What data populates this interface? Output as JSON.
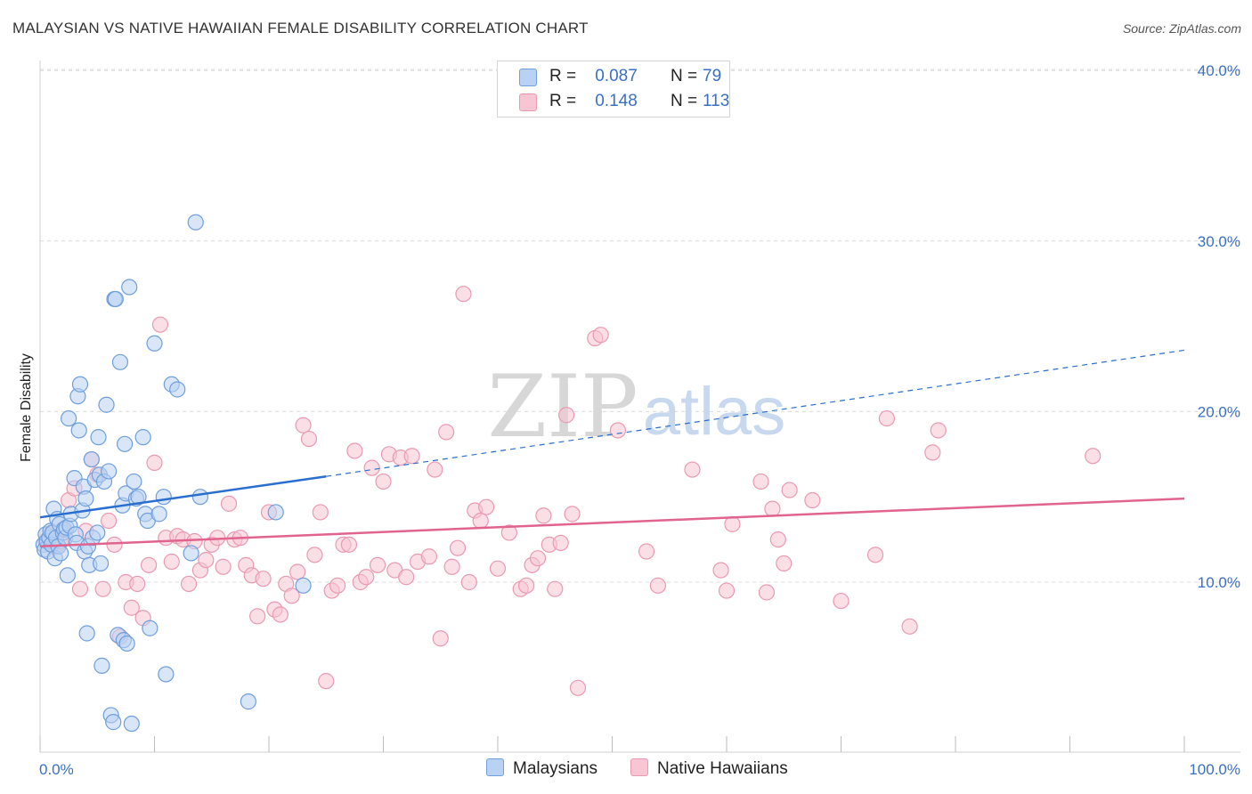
{
  "title": "MALAYSIAN VS NATIVE HAWAIIAN FEMALE DISABILITY CORRELATION CHART",
  "source": "Source: ZipAtlas.com",
  "watermark": {
    "zip": "ZIP",
    "atlas": "atlas"
  },
  "legend": {
    "rows": [
      {
        "r_label": "R =",
        "r_value": "0.087",
        "n_label": "N =",
        "n_value": "79"
      },
      {
        "r_label": "R =",
        "r_value": "0.148",
        "n_label": "N =",
        "n_value": "113"
      }
    ]
  },
  "bottom_legend": {
    "series1": "Malaysians",
    "series2": "Native Hawaiians"
  },
  "colors": {
    "series1_fill": "#b9d2f3",
    "series1_stroke": "#6f9fdc",
    "series1_line": "#2a6fcf",
    "series2_fill": "#f7c5d4",
    "series2_stroke": "#e99ab3",
    "series2_line": "#e0648f",
    "tick_text": "#3a6fc4",
    "grid": "#dcdcdc"
  },
  "chart_data": {
    "type": "scatter",
    "title": "MALAYSIAN VS NATIVE HAWAIIAN FEMALE DISABILITY CORRELATION CHART",
    "xlabel": "",
    "ylabel": "Female Disability",
    "xlim": [
      0,
      100
    ],
    "ylim": [
      0,
      41
    ],
    "x_tick_labels": [
      "0.0%",
      "100.0%"
    ],
    "y_ticks": [
      10,
      20,
      30,
      40
    ],
    "y_tick_labels": [
      "10.0%",
      "20.0%",
      "30.0%",
      "40.0%"
    ],
    "series": [
      {
        "name": "Malaysians",
        "R": 0.087,
        "N": 79,
        "trend": {
          "x0": 0,
          "y0": 13.8,
          "x1": 25,
          "y1": 16.2,
          "dashed_to_x": 100,
          "dashed_to_y": 23.6
        },
        "points": [
          [
            0.3,
            12.2
          ],
          [
            0.4,
            11.9
          ],
          [
            0.5,
            12.8
          ],
          [
            0.6,
            12.4
          ],
          [
            0.7,
            11.8
          ],
          [
            0.8,
            12.6
          ],
          [
            0.9,
            13.0
          ],
          [
            1.0,
            12.2
          ],
          [
            1.1,
            12.9
          ],
          [
            1.2,
            14.3
          ],
          [
            1.3,
            11.4
          ],
          [
            1.4,
            12.6
          ],
          [
            1.5,
            13.7
          ],
          [
            1.6,
            12.1
          ],
          [
            1.7,
            13.4
          ],
          [
            1.8,
            11.7
          ],
          [
            2.0,
            12.9
          ],
          [
            2.1,
            13.1
          ],
          [
            2.2,
            12.6
          ],
          [
            2.3,
            13.2
          ],
          [
            2.4,
            10.4
          ],
          [
            2.5,
            19.6
          ],
          [
            2.6,
            13.3
          ],
          [
            2.7,
            14.0
          ],
          [
            3.0,
            16.1
          ],
          [
            3.1,
            12.8
          ],
          [
            3.2,
            12.3
          ],
          [
            3.3,
            20.9
          ],
          [
            3.4,
            18.9
          ],
          [
            3.5,
            21.6
          ],
          [
            3.7,
            14.2
          ],
          [
            3.8,
            15.6
          ],
          [
            3.9,
            11.8
          ],
          [
            4.0,
            14.9
          ],
          [
            4.1,
            7.0
          ],
          [
            4.2,
            12.1
          ],
          [
            4.3,
            11.0
          ],
          [
            4.5,
            17.2
          ],
          [
            4.6,
            12.6
          ],
          [
            4.8,
            16.0
          ],
          [
            5.0,
            12.9
          ],
          [
            5.1,
            18.5
          ],
          [
            5.2,
            16.3
          ],
          [
            5.3,
            11.1
          ],
          [
            5.4,
            5.1
          ],
          [
            5.6,
            15.9
          ],
          [
            5.8,
            20.4
          ],
          [
            6.0,
            16.5
          ],
          [
            6.2,
            2.2
          ],
          [
            6.4,
            1.8
          ],
          [
            6.5,
            26.6
          ],
          [
            6.6,
            26.6
          ],
          [
            6.8,
            6.9
          ],
          [
            7.0,
            22.9
          ],
          [
            7.2,
            14.5
          ],
          [
            7.3,
            6.6
          ],
          [
            7.4,
            18.1
          ],
          [
            7.5,
            15.2
          ],
          [
            7.6,
            6.4
          ],
          [
            7.8,
            27.3
          ],
          [
            8.0,
            1.7
          ],
          [
            8.2,
            15.9
          ],
          [
            8.4,
            14.9
          ],
          [
            8.6,
            15.0
          ],
          [
            9.0,
            18.5
          ],
          [
            9.2,
            14.0
          ],
          [
            9.4,
            13.6
          ],
          [
            9.6,
            7.3
          ],
          [
            10.0,
            24.0
          ],
          [
            10.4,
            14.0
          ],
          [
            10.8,
            15.0
          ],
          [
            11.0,
            4.6
          ],
          [
            11.5,
            21.6
          ],
          [
            12.0,
            21.3
          ],
          [
            13.6,
            31.1
          ],
          [
            13.2,
            11.7
          ],
          [
            14.0,
            15.0
          ],
          [
            18.2,
            3.0
          ],
          [
            20.6,
            14.1
          ],
          [
            23.0,
            9.8
          ]
        ]
      },
      {
        "name": "Native Hawaiians",
        "R": 0.148,
        "N": 113,
        "trend": {
          "x0": 0,
          "y0": 12.1,
          "x1": 100,
          "y1": 14.9
        },
        "points": [
          [
            0.5,
            12.4
          ],
          [
            0.8,
            12.6
          ],
          [
            1.0,
            12.9
          ],
          [
            1.2,
            12.1
          ],
          [
            1.5,
            12.2
          ],
          [
            1.8,
            12.4
          ],
          [
            2.0,
            13.1
          ],
          [
            2.5,
            14.8
          ],
          [
            3.0,
            15.5
          ],
          [
            3.5,
            9.6
          ],
          [
            4.0,
            13.0
          ],
          [
            4.5,
            17.2
          ],
          [
            5.0,
            16.3
          ],
          [
            5.5,
            9.6
          ],
          [
            6.0,
            13.6
          ],
          [
            6.5,
            12.2
          ],
          [
            7.0,
            6.8
          ],
          [
            7.5,
            10.0
          ],
          [
            8.0,
            8.5
          ],
          [
            8.5,
            9.9
          ],
          [
            9.0,
            7.9
          ],
          [
            9.5,
            11.0
          ],
          [
            10.0,
            17.0
          ],
          [
            10.5,
            25.1
          ],
          [
            11.0,
            12.6
          ],
          [
            11.5,
            11.2
          ],
          [
            12.0,
            12.7
          ],
          [
            12.5,
            12.5
          ],
          [
            13.0,
            9.9
          ],
          [
            13.5,
            12.4
          ],
          [
            14.0,
            10.7
          ],
          [
            14.5,
            11.3
          ],
          [
            15.0,
            12.2
          ],
          [
            15.5,
            12.6
          ],
          [
            16.0,
            10.9
          ],
          [
            16.5,
            14.6
          ],
          [
            17.0,
            12.5
          ],
          [
            17.5,
            12.6
          ],
          [
            18.0,
            11.0
          ],
          [
            18.5,
            10.4
          ],
          [
            19.0,
            8.0
          ],
          [
            19.5,
            10.2
          ],
          [
            20.0,
            14.1
          ],
          [
            20.5,
            8.4
          ],
          [
            21.0,
            8.1
          ],
          [
            21.5,
            9.9
          ],
          [
            22.0,
            9.2
          ],
          [
            22.5,
            10.6
          ],
          [
            23.0,
            19.2
          ],
          [
            23.5,
            18.4
          ],
          [
            24.0,
            11.6
          ],
          [
            24.5,
            14.1
          ],
          [
            25.0,
            4.2
          ],
          [
            25.5,
            9.5
          ],
          [
            26.0,
            9.8
          ],
          [
            26.5,
            12.2
          ],
          [
            27.0,
            12.2
          ],
          [
            27.5,
            17.7
          ],
          [
            28.0,
            10.0
          ],
          [
            28.5,
            10.3
          ],
          [
            29.0,
            16.7
          ],
          [
            29.5,
            11.0
          ],
          [
            30.0,
            15.9
          ],
          [
            30.5,
            17.5
          ],
          [
            31.0,
            10.7
          ],
          [
            31.5,
            17.3
          ],
          [
            32.0,
            10.3
          ],
          [
            32.5,
            17.4
          ],
          [
            33.0,
            11.2
          ],
          [
            34.0,
            11.5
          ],
          [
            34.5,
            16.6
          ],
          [
            35.0,
            6.7
          ],
          [
            35.5,
            18.8
          ],
          [
            36.0,
            10.9
          ],
          [
            36.5,
            12.0
          ],
          [
            37.0,
            26.9
          ],
          [
            37.5,
            10.0
          ],
          [
            38.0,
            14.2
          ],
          [
            38.5,
            13.6
          ],
          [
            39.0,
            14.4
          ],
          [
            40.0,
            10.8
          ],
          [
            41.0,
            12.9
          ],
          [
            42.0,
            9.6
          ],
          [
            42.5,
            9.8
          ],
          [
            43.0,
            11.0
          ],
          [
            43.5,
            11.4
          ],
          [
            44.0,
            13.9
          ],
          [
            44.5,
            12.2
          ],
          [
            45.0,
            9.6
          ],
          [
            45.5,
            12.3
          ],
          [
            46.0,
            19.8
          ],
          [
            46.5,
            14.0
          ],
          [
            47.0,
            3.8
          ],
          [
            48.5,
            24.3
          ],
          [
            49.0,
            24.5
          ],
          [
            50.5,
            18.9
          ],
          [
            53.0,
            11.8
          ],
          [
            54.0,
            9.8
          ],
          [
            57.0,
            16.6
          ],
          [
            59.5,
            10.7
          ],
          [
            60.0,
            9.5
          ],
          [
            60.5,
            13.4
          ],
          [
            63.5,
            9.4
          ],
          [
            63.0,
            15.9
          ],
          [
            64.0,
            14.3
          ],
          [
            64.5,
            12.5
          ],
          [
            65.0,
            11.1
          ],
          [
            65.5,
            15.4
          ],
          [
            67.5,
            14.8
          ],
          [
            70.0,
            8.9
          ],
          [
            73.0,
            11.6
          ],
          [
            74.0,
            19.6
          ],
          [
            76.0,
            7.4
          ],
          [
            78.0,
            17.6
          ],
          [
            78.5,
            18.9
          ],
          [
            92.0,
            17.4
          ]
        ]
      }
    ]
  }
}
